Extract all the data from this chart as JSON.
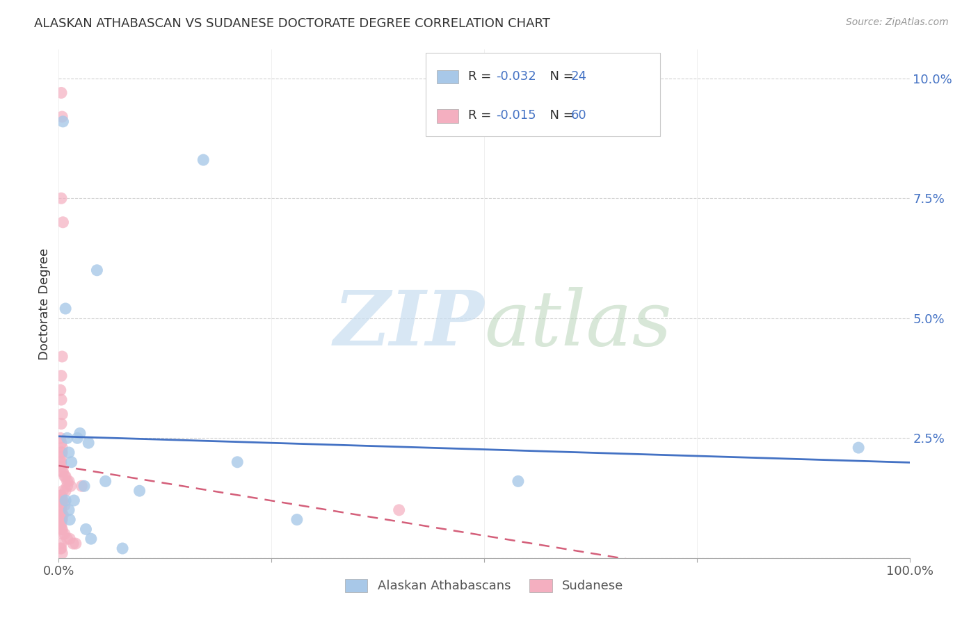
{
  "title": "ALASKAN ATHABASCAN VS SUDANESE DOCTORATE DEGREE CORRELATION CHART",
  "source": "Source: ZipAtlas.com",
  "ylabel": "Doctorate Degree",
  "yticks": [
    0.0,
    0.025,
    0.05,
    0.075,
    0.1
  ],
  "ytick_labels": [
    "",
    "2.5%",
    "5.0%",
    "7.5%",
    "10.0%"
  ],
  "legend_blue_r": "-0.032",
  "legend_blue_n": "24",
  "legend_pink_r": "-0.015",
  "legend_pink_n": "60",
  "legend_blue_label": "Alaskan Athabascans",
  "legend_pink_label": "Sudanese",
  "blue_scatter_color": "#a8c8e8",
  "pink_scatter_color": "#f4afc0",
  "blue_line_color": "#4472c4",
  "pink_line_color": "#d45f7a",
  "legend_blue_text_color": "#4472c4",
  "legend_pink_text_color": "#4472c4",
  "ytick_color": "#4472c4",
  "background_color": "#ffffff",
  "blue_x": [
    0.005,
    0.045,
    0.17,
    0.008,
    0.03,
    0.01,
    0.012,
    0.025,
    0.035,
    0.015,
    0.055,
    0.095,
    0.21,
    0.28,
    0.54,
    0.94,
    0.018,
    0.012,
    0.032,
    0.075,
    0.038,
    0.013,
    0.008,
    0.022
  ],
  "blue_y": [
    0.091,
    0.06,
    0.083,
    0.052,
    0.015,
    0.025,
    0.022,
    0.026,
    0.024,
    0.02,
    0.016,
    0.014,
    0.02,
    0.008,
    0.016,
    0.023,
    0.012,
    0.01,
    0.006,
    0.002,
    0.004,
    0.008,
    0.012,
    0.025
  ],
  "pink_x": [
    0.003,
    0.004,
    0.003,
    0.005,
    0.004,
    0.003,
    0.002,
    0.003,
    0.004,
    0.003,
    0.002,
    0.003,
    0.004,
    0.003,
    0.004,
    0.003,
    0.002,
    0.003,
    0.003,
    0.004,
    0.005,
    0.007,
    0.008,
    0.01,
    0.012,
    0.014,
    0.01,
    0.008,
    0.005,
    0.003,
    0.002,
    0.003,
    0.004,
    0.005,
    0.007,
    0.003,
    0.002,
    0.003,
    0.004,
    0.005,
    0.002,
    0.003,
    0.003,
    0.004,
    0.002,
    0.003,
    0.003,
    0.004,
    0.005,
    0.007,
    0.01,
    0.013,
    0.017,
    0.02,
    0.027,
    0.003,
    0.002,
    0.003,
    0.004,
    0.4
  ],
  "pink_y": [
    0.097,
    0.092,
    0.075,
    0.07,
    0.042,
    0.038,
    0.035,
    0.033,
    0.03,
    0.028,
    0.025,
    0.024,
    0.023,
    0.022,
    0.022,
    0.021,
    0.02,
    0.02,
    0.019,
    0.018,
    0.018,
    0.017,
    0.017,
    0.016,
    0.016,
    0.015,
    0.015,
    0.014,
    0.014,
    0.013,
    0.013,
    0.012,
    0.012,
    0.012,
    0.011,
    0.011,
    0.01,
    0.01,
    0.009,
    0.009,
    0.009,
    0.008,
    0.008,
    0.008,
    0.007,
    0.007,
    0.006,
    0.006,
    0.005,
    0.005,
    0.004,
    0.004,
    0.003,
    0.003,
    0.015,
    0.003,
    0.002,
    0.002,
    0.001,
    0.01
  ],
  "xlim": [
    0.0,
    1.0
  ],
  "ylim": [
    0.0,
    0.106
  ],
  "blue_trend_x0": 0.0,
  "blue_trend_x1": 1.0,
  "pink_trend_x0": 0.0,
  "pink_trend_x1": 1.0
}
